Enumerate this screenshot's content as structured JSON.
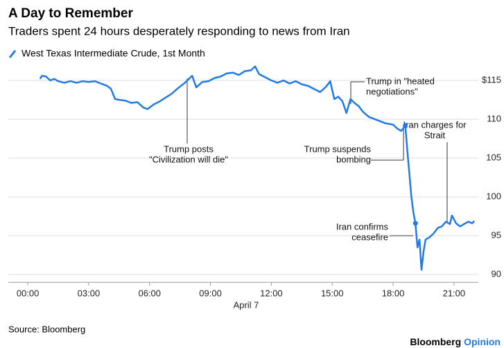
{
  "chart_data": {
    "type": "line",
    "title": "A Day to Remember",
    "subtitle": "Traders spent 24 hours desperately responding to news from Iran",
    "x_label": "April 7",
    "source": "Source: Bloomberg",
    "brand": [
      "Bloomberg",
      "Opinion"
    ],
    "series": [
      {
        "name": "West Texas Intermediate Crude, 1st Month",
        "color": "#1f7ae8",
        "x": [
          0.6,
          0.7,
          0.9,
          1.1,
          1.3,
          1.5,
          1.8,
          2.1,
          2.4,
          2.7,
          3.0,
          3.3,
          3.6,
          3.9,
          4.1,
          4.3,
          4.5,
          4.8,
          5.1,
          5.4,
          5.7,
          5.9,
          6.2,
          6.5,
          6.8,
          7.1,
          7.4,
          7.7,
          7.9,
          8.1,
          8.3,
          8.6,
          8.9,
          9.2,
          9.5,
          9.8,
          10.1,
          10.4,
          10.7,
          11.0,
          11.2,
          11.4,
          11.7,
          12.0,
          12.3,
          12.6,
          12.9,
          13.2,
          13.5,
          13.8,
          14.1,
          14.4,
          14.7,
          14.9,
          15.1,
          15.3,
          15.5,
          15.7,
          15.9,
          16.1,
          16.3,
          16.5,
          16.8,
          17.2,
          17.6,
          18.0,
          18.2,
          18.4,
          18.6,
          18.7,
          18.8,
          18.9,
          19.0,
          19.1,
          19.2,
          19.3,
          19.4,
          19.5,
          19.6,
          19.8,
          20.0,
          20.2,
          20.4,
          20.6,
          20.8,
          20.9,
          21.1,
          21.3,
          21.5,
          21.7,
          21.9,
          22.0
        ],
        "values": [
          115.2,
          115.6,
          115.5,
          115.0,
          115.2,
          114.9,
          114.7,
          114.9,
          114.7,
          114.9,
          114.8,
          114.9,
          114.6,
          114.3,
          113.9,
          112.6,
          112.5,
          112.4,
          112.1,
          112.2,
          111.5,
          111.3,
          111.9,
          112.3,
          112.8,
          113.3,
          114.0,
          114.6,
          115.1,
          115.6,
          114.1,
          114.8,
          114.9,
          115.3,
          115.5,
          115.9,
          116.0,
          115.7,
          116.2,
          116.3,
          116.8,
          115.8,
          115.4,
          115.0,
          114.7,
          115.0,
          114.6,
          114.9,
          114.5,
          114.3,
          113.9,
          113.5,
          114.2,
          114.9,
          112.6,
          112.9,
          112.3,
          110.8,
          112.6,
          112.1,
          111.7,
          111.0,
          110.3,
          109.9,
          109.5,
          109.3,
          108.8,
          108.5,
          109.2,
          106.0,
          103.0,
          100.0,
          98.0,
          96.6,
          93.5,
          94.5,
          90.6,
          93.0,
          94.5,
          94.8,
          95.3,
          96.0,
          96.2,
          96.8,
          96.5,
          97.6,
          96.6,
          96.2,
          96.5,
          96.8,
          96.6,
          96.9
        ]
      }
    ],
    "xlim": [
      -0.96,
      22.2
    ],
    "xticks": [
      {
        "value": 0,
        "label": "00:00"
      },
      {
        "value": 3,
        "label": "03:00"
      },
      {
        "value": 6,
        "label": "06:00"
      },
      {
        "value": 9,
        "label": "09:00"
      },
      {
        "value": 12,
        "label": "12:00"
      },
      {
        "value": 15,
        "label": "15:00"
      },
      {
        "value": 18,
        "label": "18:00"
      },
      {
        "value": 21,
        "label": "21:00"
      }
    ],
    "ylim": [
      89,
      117
    ],
    "yticks": [
      90,
      95,
      100,
      105,
      {
        "value": 110,
        "label": "110"
      },
      {
        "value": 115,
        "label": "$115"
      }
    ],
    "grid": true,
    "annotations": [
      {
        "lines": [
          "Trump posts",
          "\"Civilization will die\""
        ]
      },
      {
        "lines": [
          "Trump in \"heated",
          "negotiations\""
        ]
      },
      {
        "lines": [
          "Trump suspends",
          "bombing"
        ]
      },
      {
        "lines": [
          "Iran confirms",
          "ceasefire"
        ]
      },
      {
        "lines": [
          "Iran charges for",
          "Strait"
        ]
      }
    ]
  }
}
